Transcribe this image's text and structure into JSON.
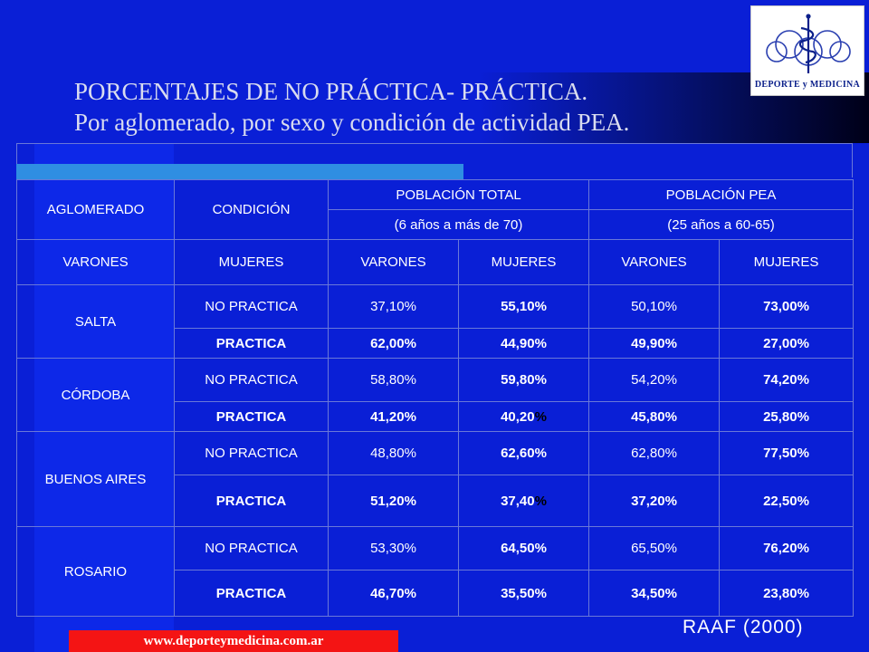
{
  "title": {
    "line1": "PORCENTAJES DE NO PRÁCTICA- PRÁCTICA.",
    "line2": "Por aglomerado, por sexo y condición de actividad PEA."
  },
  "logo": {
    "text": "DEPORTE y MEDICINA",
    "color": "#0a1f8a"
  },
  "table": {
    "headers": {
      "aglomerado": "AGLOMERADO",
      "condicion": "CONDICIÓN",
      "poblacion_total": "POBLACIÓN TOTAL",
      "poblacion_pea": "POBLACIÓN PEA",
      "total_range": "(6 años a más de 70)",
      "pea_range": "(25 años a 60-65)",
      "sub": [
        "VARONES",
        "MUJERES",
        "VARONES",
        "MUJERES",
        "VARONES",
        "MUJERES"
      ]
    },
    "rows": [
      {
        "name": "SALTA",
        "no_practica": {
          "label": "NO PRACTICA",
          "values": [
            "37,10%",
            "55,10%",
            "50,10%",
            "73,00%"
          ]
        },
        "practica": {
          "label": "PRACTICA",
          "values": [
            "62,00%",
            "44,90%",
            "49,90%",
            "27,00%"
          ]
        }
      },
      {
        "name": "CÓRDOBA",
        "no_practica": {
          "label": "NO PRACTICA",
          "values": [
            "58,80%",
            "59,80%",
            "54,20%",
            "74,20%"
          ]
        },
        "practica": {
          "label": "PRACTICA",
          "values": [
            "41,20%",
            "40,20",
            "45,80%",
            "25,80%"
          ]
        }
      },
      {
        "name": "BUENOS AIRES",
        "no_practica": {
          "label": "NO PRACTICA",
          "values": [
            "48,80%",
            "62,60%",
            "62,80%",
            "77,50%"
          ]
        },
        "practica": {
          "label": "PRACTICA",
          "values": [
            "51,20%",
            "37,40",
            "37,20%",
            "22,50%"
          ]
        }
      },
      {
        "name": "ROSARIO",
        "no_practica": {
          "label": "NO PRACTICA",
          "values": [
            "53,30%",
            "64,50%",
            "65,50%",
            "76,20%"
          ]
        },
        "practica": {
          "label": "PRACTICA",
          "values": [
            "46,70%",
            "35,50%",
            "34,50%",
            "23,80%"
          ]
        }
      }
    ],
    "percent_sign": "%"
  },
  "footer": {
    "url": "www.deporteymedicina.com.ar",
    "source": "RAAF (2000)"
  },
  "colors": {
    "background": "#0a1fd6",
    "no_practica": "#ff33ff",
    "women_no_practica": "#ffff33",
    "footer_bar": "#f41414"
  }
}
